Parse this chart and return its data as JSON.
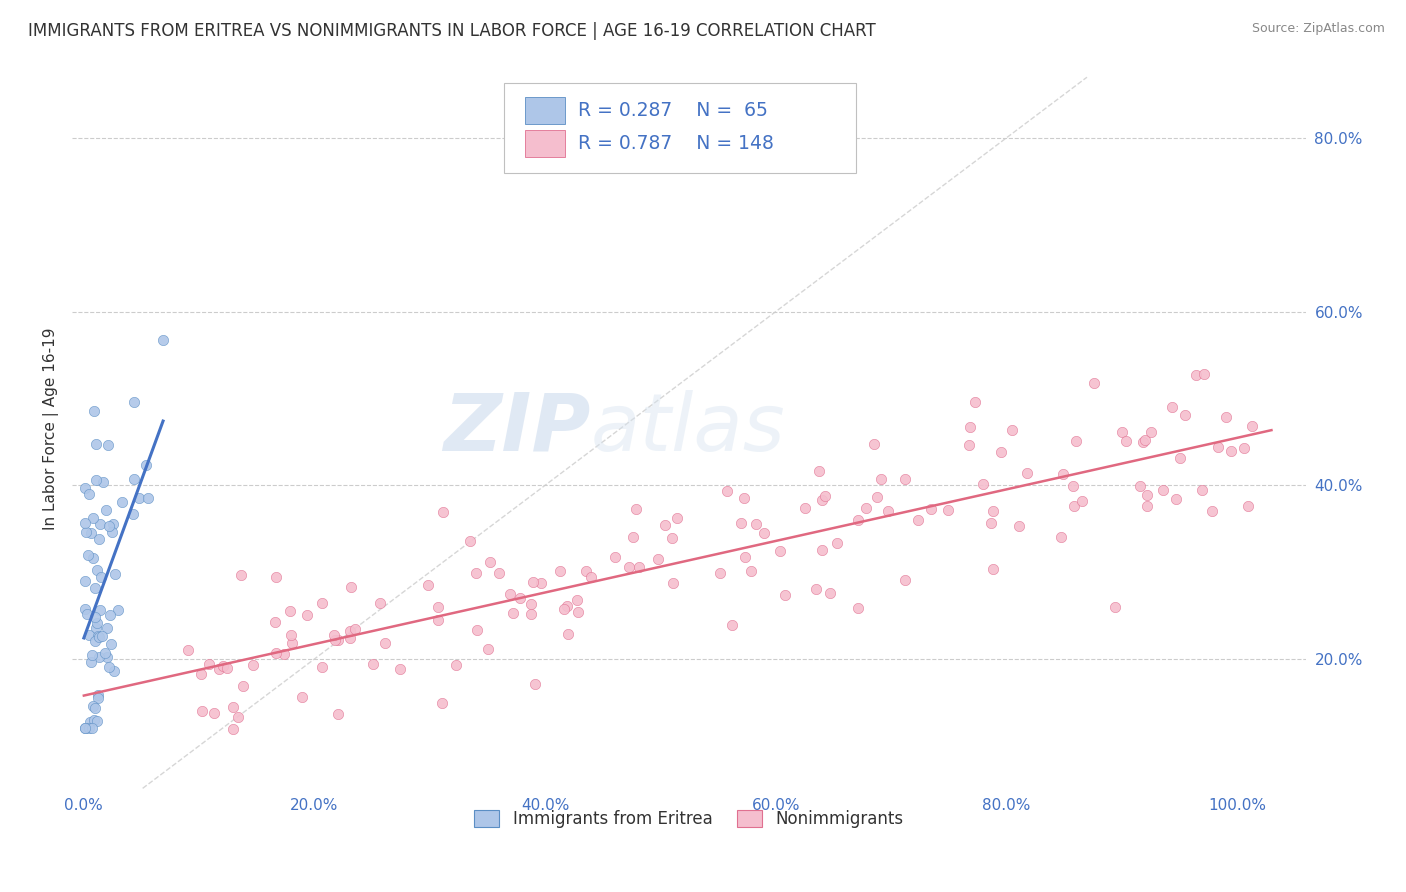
{
  "title": "IMMIGRANTS FROM ERITREA VS NONIMMIGRANTS IN LABOR FORCE | AGE 16-19 CORRELATION CHART",
  "source": "Source: ZipAtlas.com",
  "ylabel": "In Labor Force | Age 16-19",
  "x_ticks": [
    0.0,
    0.2,
    0.4,
    0.6,
    0.8,
    1.0
  ],
  "x_tick_labels": [
    "0.0%",
    "20.0%",
    "40.0%",
    "60.0%",
    "80.0%",
    "100.0%"
  ],
  "y_ticks": [
    0.2,
    0.4,
    0.6,
    0.8
  ],
  "y_tick_labels": [
    "20.0%",
    "40.0%",
    "60.0%",
    "80.0%"
  ],
  "xlim": [
    -0.01,
    1.06
  ],
  "ylim": [
    0.05,
    0.88
  ],
  "blue_color": "#aec6e8",
  "blue_edge_color": "#5b8ec4",
  "blue_line_color": "#4472c4",
  "pink_color": "#f5bece",
  "pink_edge_color": "#e07090",
  "pink_line_color": "#e06880",
  "blue_R": 0.287,
  "blue_N": 65,
  "pink_R": 0.787,
  "pink_N": 148,
  "legend_label_blue": "Immigrants from Eritrea",
  "legend_label_pink": "Nonimmigrants",
  "watermark_zip": "ZIP",
  "watermark_atlas": "atlas",
  "background_color": "#ffffff",
  "title_color": "#333333",
  "title_fontsize": 12,
  "tick_color": "#4472c4",
  "grid_color": "#cccccc",
  "diag_color": "#cccccc",
  "source_color": "#888888"
}
